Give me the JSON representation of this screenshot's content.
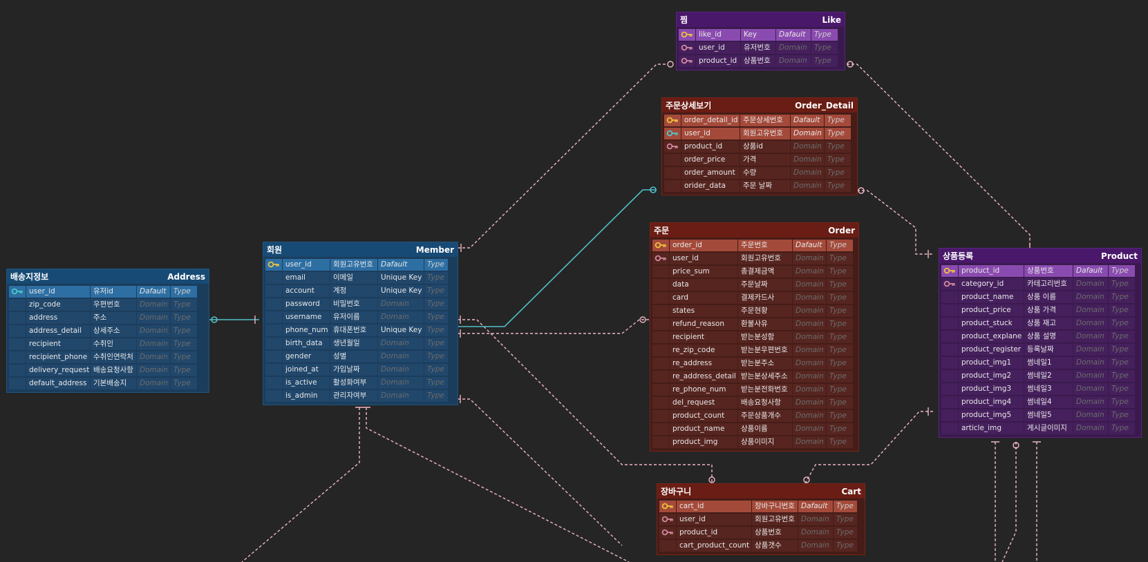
{
  "colors": {
    "pk_key": "#f0c33c",
    "fk_key": "#4cc9c9",
    "key": "#d48aa0",
    "link": "#f2b8c6",
    "link_active": "#52c0cc"
  },
  "tables": [
    {
      "id": "address",
      "title_kr": "배송지정보",
      "title_en": "Address",
      "theme": {
        "border": "#1f5680",
        "header": "#174a74",
        "body": "#1b3d5c",
        "pk": "#2e6fa3",
        "cell": "#21476b"
      },
      "cols": [
        92,
        66,
        48,
        38
      ],
      "rows": [
        {
          "key": "fk",
          "pk": true,
          "name": "user_id",
          "desc": "유저id",
          "domain": "Dafault",
          "type": "Type"
        },
        {
          "key": "",
          "name": "zip_code",
          "desc": "우편번호",
          "domain": "Domain",
          "type": "Type"
        },
        {
          "key": "",
          "name": "address",
          "desc": "주소",
          "domain": "Domain",
          "type": "Type"
        },
        {
          "key": "",
          "name": "address_detail",
          "desc": "상세주소",
          "domain": "Domain",
          "type": "Type"
        },
        {
          "key": "",
          "name": "recipient",
          "desc": "수취인",
          "domain": "Domain",
          "type": "Type"
        },
        {
          "key": "",
          "name": "recipient_phone",
          "desc": "수취인연락처",
          "domain": "Domain",
          "type": "Type"
        },
        {
          "key": "",
          "name": "delivery_request",
          "desc": "배송요청사항",
          "domain": "Domain",
          "type": "Type"
        },
        {
          "key": "",
          "name": "default_address",
          "desc": "기본배송지",
          "domain": "Domain",
          "type": "Type"
        }
      ]
    },
    {
      "id": "member",
      "title_kr": "회원",
      "title_en": "Member",
      "theme": {
        "border": "#1f5680",
        "header": "#174a74",
        "body": "#1b3d5c",
        "pk": "#2e6fa3",
        "cell": "#21476b"
      },
      "cols": [
        68,
        68,
        66,
        34
      ],
      "rows": [
        {
          "key": "pk",
          "pk": true,
          "name": "user_id",
          "desc": "회원고유번호",
          "domain": "Dafault",
          "type": "Type"
        },
        {
          "key": "",
          "name": "email",
          "desc": "이메일",
          "domain": "Unique Key",
          "type": "Type",
          "plain": true
        },
        {
          "key": "",
          "name": "account",
          "desc": "계정",
          "domain": "Unique Key",
          "type": "Type",
          "plain": true
        },
        {
          "key": "",
          "name": "password",
          "desc": "비밀번호",
          "domain": "Domain",
          "type": "Type"
        },
        {
          "key": "",
          "name": "username",
          "desc": "유저이름",
          "domain": "Domain",
          "type": "Type"
        },
        {
          "key": "",
          "name": "phone_num",
          "desc": "휴대폰번호",
          "domain": "Unique Key",
          "type": "Type",
          "plain": true
        },
        {
          "key": "",
          "name": "birth_data",
          "desc": "생년월일",
          "domain": "Domain",
          "type": "Type"
        },
        {
          "key": "",
          "name": "gender",
          "desc": "성별",
          "domain": "Domain",
          "type": "Type"
        },
        {
          "key": "",
          "name": "joined_at",
          "desc": "가입날짜",
          "domain": "Domain",
          "type": "Type"
        },
        {
          "key": "",
          "name": "is_active",
          "desc": "활성화여부",
          "domain": "Domain",
          "type": "Type"
        },
        {
          "key": "",
          "name": "is_admin",
          "desc": "관리자여부",
          "domain": "Domain",
          "type": "Type"
        }
      ]
    },
    {
      "id": "like",
      "title_kr": "찜",
      "title_en": "Like",
      "theme": {
        "border": "#5c2380",
        "header": "#4a186a",
        "body": "#3a1a4e",
        "pk": "#8a4bb0",
        "cell": "#45205c"
      },
      "cols": [
        64,
        50,
        50,
        38
      ],
      "rows": [
        {
          "key": "pk",
          "pk": true,
          "name": "like_id",
          "desc": "Key",
          "domain": "Dafault",
          "type": "Type"
        },
        {
          "key": "key",
          "name": "user_id",
          "desc": "유저번호",
          "domain": "Domain",
          "type": "Type"
        },
        {
          "key": "key",
          "name": "product_id",
          "desc": "상품번호",
          "domain": "Domain",
          "type": "Type"
        }
      ]
    },
    {
      "id": "order_detail",
      "title_kr": "주문상세보기",
      "title_en": "Order_Detail",
      "theme": {
        "border": "#7a2418",
        "header": "#6a1d14",
        "body": "#451c17",
        "pk": "#a44a3a",
        "cell": "#562520"
      },
      "cols": [
        84,
        72,
        48,
        38
      ],
      "rows": [
        {
          "key": "pk",
          "pk": true,
          "name": "order_detail_id",
          "desc": "주문상세번호",
          "domain": "Dafault",
          "type": "Type"
        },
        {
          "key": "fk",
          "pk": true,
          "name": "user_id",
          "desc": "회원고유번호",
          "domain": "Domain",
          "type": "Type"
        },
        {
          "key": "key",
          "name": "product_id",
          "desc": "상품id",
          "domain": "Domain",
          "type": "Type"
        },
        {
          "key": "",
          "name": "order_price",
          "desc": "가격",
          "domain": "Domain",
          "type": "Type"
        },
        {
          "key": "",
          "name": "order_amount",
          "desc": "수량",
          "domain": "Domain",
          "type": "Type"
        },
        {
          "key": "",
          "name": "orider_data",
          "desc": "주문 날짜",
          "domain": "Domain",
          "type": "Type"
        }
      ]
    },
    {
      "id": "order",
      "title_kr": "주문",
      "title_en": "Order",
      "theme": {
        "border": "#7a2418",
        "header": "#6a1d14",
        "body": "#451c17",
        "pk": "#a44a3a",
        "cell": "#562520"
      },
      "cols": [
        98,
        78,
        48,
        38
      ],
      "rows": [
        {
          "key": "pk",
          "pk": true,
          "name": "order_id",
          "desc": "주문번호",
          "domain": "Dafault",
          "type": "Type"
        },
        {
          "key": "key",
          "name": "user_id",
          "desc": "회원고유번호",
          "domain": "Domain",
          "type": "Type"
        },
        {
          "key": "",
          "name": "price_sum",
          "desc": "총결제금액",
          "domain": "Domain",
          "type": "Type"
        },
        {
          "key": "",
          "name": "data",
          "desc": "주문날짜",
          "domain": "Domain",
          "type": "Type"
        },
        {
          "key": "",
          "name": "card",
          "desc": "결제카드사",
          "domain": "Domain",
          "type": "Type"
        },
        {
          "key": "",
          "name": "states",
          "desc": "주문현황",
          "domain": "Domain",
          "type": "Type"
        },
        {
          "key": "",
          "name": "refund_reason",
          "desc": "환불사유",
          "domain": "Domain",
          "type": "Type"
        },
        {
          "key": "",
          "name": "recipient",
          "desc": "받는분성함",
          "domain": "Domain",
          "type": "Type"
        },
        {
          "key": "",
          "name": "re_zip_code",
          "desc": "받는분우편번호",
          "domain": "Domain",
          "type": "Type"
        },
        {
          "key": "",
          "name": "re_address",
          "desc": "받는분주소",
          "domain": "Domain",
          "type": "Type"
        },
        {
          "key": "",
          "name": "re_address_detail",
          "desc": "받는분상세주소",
          "domain": "Domain",
          "type": "Type"
        },
        {
          "key": "",
          "name": "re_phone_num",
          "desc": "받는분전화번호",
          "domain": "Domain",
          "type": "Type"
        },
        {
          "key": "",
          "name": "del_request",
          "desc": "배송요청사항",
          "domain": "Domain",
          "type": "Type"
        },
        {
          "key": "",
          "name": "product_count",
          "desc": "주문상품개수",
          "domain": "Domain",
          "type": "Type"
        },
        {
          "key": "",
          "name": "product_name",
          "desc": "상품이름",
          "domain": "Domain",
          "type": "Type"
        },
        {
          "key": "",
          "name": "product_img",
          "desc": "상품이미지",
          "domain": "Domain",
          "type": "Type"
        }
      ]
    },
    {
      "id": "cart",
      "title_kr": "장바구니",
      "title_en": "Cart",
      "theme": {
        "border": "#7a2418",
        "header": "#6a1d14",
        "body": "#451c17",
        "pk": "#a44a3a",
        "cell": "#562520"
      },
      "cols": [
        108,
        66,
        50,
        34
      ],
      "rows": [
        {
          "key": "pk",
          "pk": true,
          "name": "cart_id",
          "desc": "장바구니번호",
          "domain": "Dafault",
          "type": "Type"
        },
        {
          "key": "key",
          "name": "user_id",
          "desc": "회원고유번호",
          "domain": "Domain",
          "type": "Type"
        },
        {
          "key": "key",
          "name": "product_id",
          "desc": "상품번호",
          "domain": "Domain",
          "type": "Type"
        },
        {
          "key": "",
          "name": "cart_product_count",
          "desc": "상품갯수",
          "domain": "Domain",
          "type": "Type"
        }
      ]
    },
    {
      "id": "product",
      "title_kr": "상품등록",
      "title_en": "Product",
      "theme": {
        "border": "#5c2380",
        "header": "#4a186a",
        "body": "#3a1a4e",
        "pk": "#8a4bb0",
        "cell": "#45205c"
      },
      "cols": [
        94,
        70,
        50,
        38
      ],
      "rows": [
        {
          "key": "pk",
          "pk": true,
          "name": "product_id",
          "desc": "상품번호",
          "domain": "Dafault",
          "type": "Type"
        },
        {
          "key": "key",
          "name": "category_id",
          "desc": "카테고리번호",
          "domain": "Domain",
          "type": "Type"
        },
        {
          "key": "",
          "name": "product_name",
          "desc": "상품 이름",
          "domain": "Domain",
          "type": "Type"
        },
        {
          "key": "",
          "name": "product_price",
          "desc": "상품 가격",
          "domain": "Domain",
          "type": "Type"
        },
        {
          "key": "",
          "name": "product_stuck",
          "desc": "상품 재고",
          "domain": "Domain",
          "type": "Type"
        },
        {
          "key": "",
          "name": "product_explane",
          "desc": "상품 설명",
          "domain": "Domain",
          "type": "Type"
        },
        {
          "key": "",
          "name": "product_register",
          "desc": "등록날짜",
          "domain": "Domain",
          "type": "Type"
        },
        {
          "key": "",
          "name": "product_img1",
          "desc": "썸네일1",
          "domain": "Domain",
          "type": "Type"
        },
        {
          "key": "",
          "name": "product_img2",
          "desc": "썸네일2",
          "domain": "Domain",
          "type": "Type"
        },
        {
          "key": "",
          "name": "product_img3",
          "desc": "썸네일3",
          "domain": "Domain",
          "type": "Type"
        },
        {
          "key": "",
          "name": "product_img4",
          "desc": "썸네일4",
          "domain": "Domain",
          "type": "Type"
        },
        {
          "key": "",
          "name": "product_img5",
          "desc": "썸네일5",
          "domain": "Domain",
          "type": "Type"
        },
        {
          "key": "",
          "name": "article_img",
          "desc": "게시글이미지",
          "domain": "Domain",
          "type": "Type"
        }
      ]
    }
  ]
}
